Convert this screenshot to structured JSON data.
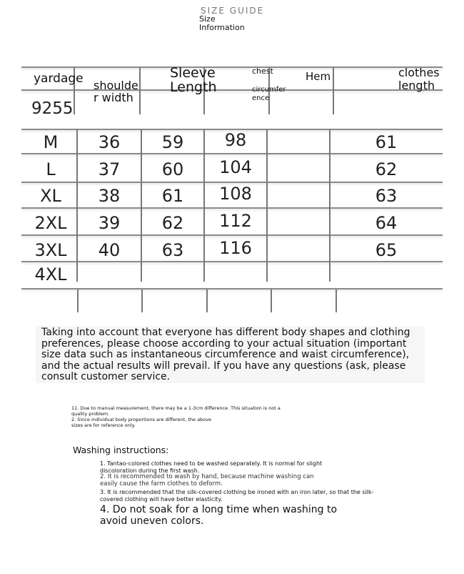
{
  "header": {
    "title": "SIZE GUIDE",
    "subtitle_line1": "Size",
    "subtitle_line2": "Information"
  },
  "table": {
    "columns": [
      {
        "line1": "yardage",
        "line2": "9255"
      },
      {
        "line1": "shoulde",
        "line2": "r width"
      },
      {
        "line1": "Sleeve",
        "line2": "Length"
      },
      {
        "line1": "chest",
        "line2": "circumfer",
        "line3": "ence"
      },
      {
        "line1": "Hem"
      },
      {
        "line1": "clothes",
        "line2": "length"
      }
    ],
    "rows": [
      {
        "size": "M",
        "shoulder": "36",
        "sleeve": "59",
        "chest": "98",
        "hem": "",
        "length": "61"
      },
      {
        "size": "L",
        "shoulder": "37",
        "sleeve": "60",
        "chest": "104",
        "hem": "",
        "length": "62"
      },
      {
        "size": "XL",
        "shoulder": "38",
        "sleeve": "61",
        "chest": "108",
        "hem": "",
        "length": "63"
      },
      {
        "size": "2XL",
        "shoulder": "39",
        "sleeve": "62",
        "chest": "112",
        "hem": "",
        "length": "64"
      },
      {
        "size": "3XL",
        "shoulder": "40",
        "sleeve": "63",
        "chest": "116",
        "hem": "",
        "length": "65"
      },
      {
        "size": "4XL",
        "shoulder": "",
        "sleeve": "",
        "chest": "",
        "hem": "",
        "length": ""
      }
    ]
  },
  "notice": "Taking into account that everyone has different body shapes and clothing preferences, please choose according to your actual situation (important size data such as instantaneous circumference and waist circumference), and the actual results will prevail. If you have any questions (ask, please consult customer service.",
  "notes": [
    "11. Due to manual measurement, there may be a 1-3cm difference. This situation is not a quality problem.",
    "2. Since individual body proportions are different, the above sizes are for reference only."
  ],
  "washing": {
    "title": "Washing instructions:",
    "items": [
      "1. Tantao-colored clothes need to be washed separately. It is normal for slight discoloration during the first wash.",
      "2. It is recommended to wash by hand, because machine washing can easily cause the farm clothes to deform.",
      "3. It is recommended that the silk-covered clothing be ironed with an iron later, so that the silk-covered clothing will have better elasticity.",
      "4. Do not soak for a long time when washing to avoid uneven colors."
    ]
  }
}
